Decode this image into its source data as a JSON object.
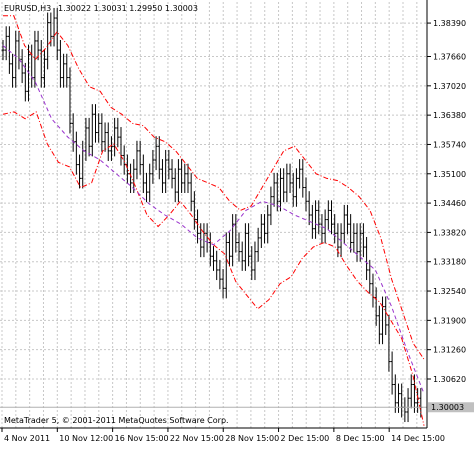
{
  "header": {
    "symbol_timeframe": "EURUSD,H3",
    "ohlc": "1.30022 1.30031 1.29950 1.30003"
  },
  "footer": {
    "copyright": "MetaTrader 5, © 2001-2011 MetaQuotes Software Corp."
  },
  "colors": {
    "background": "#ffffff",
    "grid": "#c8c8c8",
    "bars": "#000000",
    "envelope": "#ff0000",
    "middle_line": "#9933cc",
    "price_marker_bg": "#c0c0c0"
  },
  "chart_data": {
    "type": "ohlc-bar",
    "symbol": "EURUSD",
    "timeframe": "H3",
    "y_ticks": [
      "1.38390",
      "1.37660",
      "1.37020",
      "1.36380",
      "1.35740",
      "1.35100",
      "1.34460",
      "1.33820",
      "1.33180",
      "1.32540",
      "1.31900",
      "1.31260",
      "1.30620"
    ],
    "x_ticks": [
      "4 Nov 2011",
      "10 Nov 12:00",
      "16 Nov 15:00",
      "22 Nov 15:00",
      "28 Nov 15:00",
      "2 Dec 15:00",
      "8 Dec 15:00",
      "14 Dec 15:00"
    ],
    "current_price": "1.30003",
    "ylim": [
      1.2955,
      1.3885
    ],
    "grid": true,
    "series": [
      {
        "kind": "bars",
        "values": [
          1.378,
          1.381,
          1.375,
          1.372,
          1.38,
          1.376,
          1.373,
          1.369,
          1.377,
          1.372,
          1.38,
          1.378,
          1.372,
          1.376,
          1.384,
          1.381,
          1.385,
          1.378,
          1.372,
          1.375,
          1.372,
          1.362,
          1.358,
          1.353,
          1.35,
          1.356,
          1.361,
          1.357,
          1.364,
          1.36,
          1.362,
          1.358,
          1.36,
          1.356,
          1.357,
          1.361,
          1.359,
          1.355,
          1.353,
          1.351,
          1.349,
          1.352,
          1.356,
          1.353,
          1.349,
          1.347,
          1.351,
          1.354,
          1.357,
          1.352,
          1.349,
          1.354,
          1.352,
          1.35,
          1.347,
          1.352,
          1.349,
          1.351,
          1.349,
          1.345,
          1.341,
          1.338,
          1.335,
          1.338,
          1.336,
          1.333,
          1.332,
          1.33,
          1.328,
          1.326,
          1.336,
          1.333,
          1.34,
          1.336,
          1.334,
          1.332,
          1.338,
          1.333,
          1.33,
          1.334,
          1.337,
          1.34,
          1.338,
          1.342,
          1.346,
          1.349,
          1.345,
          1.35,
          1.347,
          1.351,
          1.349,
          1.346,
          1.35,
          1.352,
          1.348,
          1.345,
          1.342,
          1.339,
          1.343,
          1.34,
          1.338,
          1.341,
          1.343,
          1.34,
          1.338,
          1.335,
          1.338,
          1.342,
          1.34,
          1.336,
          1.338,
          1.334,
          1.338,
          1.335,
          1.33,
          1.327,
          1.324,
          1.32,
          1.316,
          1.322,
          1.318,
          1.31,
          1.305,
          1.301,
          1.303,
          1.3,
          1.299,
          1.302,
          1.305,
          1.301,
          1.302,
          1.3
        ]
      },
      {
        "kind": "line",
        "style": "dash-dot",
        "color": "#ff0000",
        "values": [
          1.364,
          1.3645,
          1.363,
          1.3645,
          1.3575,
          1.3535,
          1.3525,
          1.348,
          1.349,
          1.356,
          1.3575,
          1.3535,
          1.348,
          1.342,
          1.3395,
          1.342,
          1.345,
          1.342,
          1.3385,
          1.3355,
          1.3335,
          1.3275,
          1.3245,
          1.3215,
          1.3235,
          1.327,
          1.3285,
          1.3325,
          1.335,
          1.336,
          1.335,
          1.331,
          1.3275,
          1.325,
          1.323,
          1.319,
          1.315,
          1.307,
          1.296
        ]
      },
      {
        "kind": "line",
        "style": "dash-dot",
        "color": "#ff0000",
        "values": [
          1.3855,
          1.3855,
          1.379,
          1.376,
          1.3785,
          1.382,
          1.379,
          1.374,
          1.37,
          1.369,
          1.3655,
          1.364,
          1.362,
          1.3615,
          1.359,
          1.358,
          1.356,
          1.353,
          1.35,
          1.349,
          1.348,
          1.345,
          1.343,
          1.344,
          1.348,
          1.352,
          1.356,
          1.357,
          1.354,
          1.351,
          1.35,
          1.3495,
          1.348,
          1.346,
          1.343,
          1.337,
          1.328,
          1.321,
          1.314,
          1.3105
        ]
      },
      {
        "kind": "line",
        "style": "dashed",
        "color": "#9933cc",
        "values": [
          1.379,
          1.376,
          1.371,
          1.363,
          1.359,
          1.356,
          1.354,
          1.351,
          1.348,
          1.3445,
          1.342,
          1.34,
          1.337,
          1.3355,
          1.3385,
          1.343,
          1.345,
          1.344,
          1.342,
          1.3405,
          1.339,
          1.336,
          1.333,
          1.33,
          1.322,
          1.312,
          1.303
        ]
      }
    ]
  }
}
